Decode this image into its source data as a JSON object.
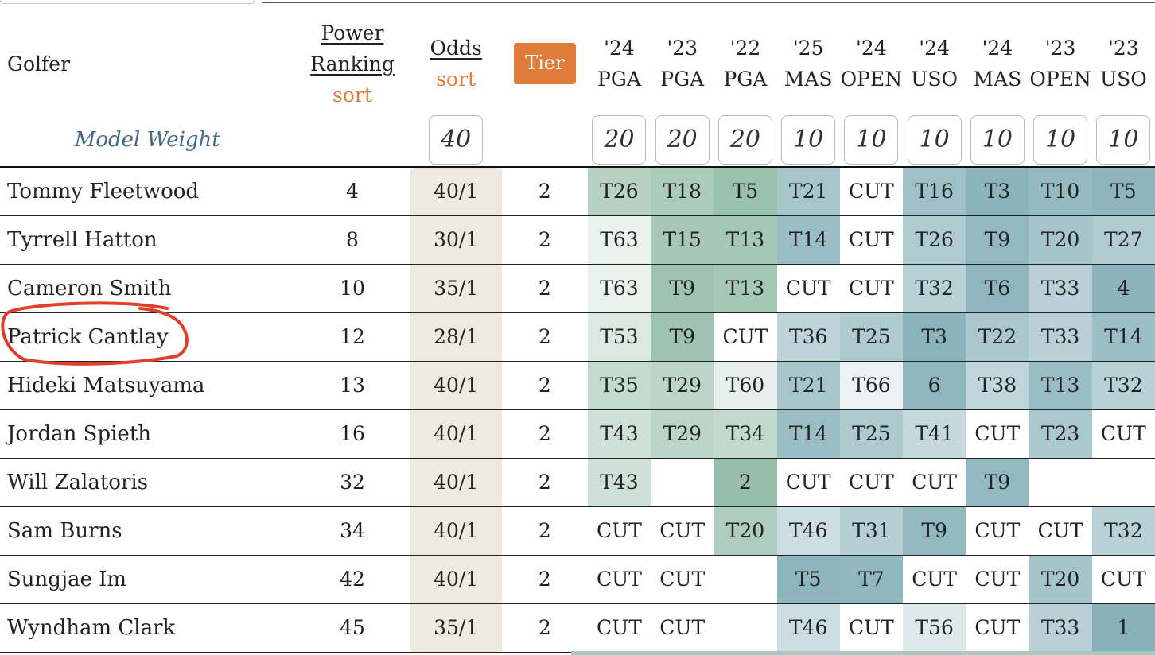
{
  "header": {
    "golfer": "Golfer",
    "power_ranking_line1": "Power",
    "power_ranking_line2": "Ranking",
    "power_ranking_sort": "sort",
    "odds": "Odds",
    "odds_sort": "sort",
    "tier": "Tier",
    "events": [
      {
        "year": "'24",
        "name": "PGA"
      },
      {
        "year": "'23",
        "name": "PGA"
      },
      {
        "year": "'22",
        "name": "PGA"
      },
      {
        "year": "'25",
        "name": "MAS"
      },
      {
        "year": "'24",
        "name": "OPEN"
      },
      {
        "year": "'24",
        "name": "USO"
      },
      {
        "year": "'24",
        "name": "MAS"
      },
      {
        "year": "'23",
        "name": "OPEN"
      },
      {
        "year": "'23",
        "name": "USO"
      }
    ]
  },
  "model_weight": {
    "label": "Model Weight",
    "odds": "40",
    "events": [
      "20",
      "20",
      "20",
      "10",
      "10",
      "10",
      "10",
      "10",
      "10"
    ]
  },
  "rows": [
    {
      "golfer": "Tommy Fleetwood",
      "rank": "4",
      "odds": "40/1",
      "tier": "2",
      "results": [
        "T26",
        "T18",
        "T5",
        "T21",
        "CUT",
        "T16",
        "T3",
        "T10",
        "T5"
      ]
    },
    {
      "golfer": "Tyrrell Hatton",
      "rank": "8",
      "odds": "30/1",
      "tier": "2",
      "results": [
        "T63",
        "T15",
        "T13",
        "T14",
        "CUT",
        "T26",
        "T9",
        "T20",
        "T27"
      ]
    },
    {
      "golfer": "Cameron Smith",
      "rank": "10",
      "odds": "35/1",
      "tier": "2",
      "results": [
        "T63",
        "T9",
        "T13",
        "CUT",
        "CUT",
        "T32",
        "T6",
        "T33",
        "4"
      ]
    },
    {
      "golfer": "Patrick Cantlay",
      "rank": "12",
      "odds": "28/1",
      "tier": "2",
      "results": [
        "T53",
        "T9",
        "CUT",
        "T36",
        "T25",
        "T3",
        "T22",
        "T33",
        "T14"
      ]
    },
    {
      "golfer": "Hideki Matsuyama",
      "rank": "13",
      "odds": "40/1",
      "tier": "2",
      "results": [
        "T35",
        "T29",
        "T60",
        "T21",
        "T66",
        "6",
        "T38",
        "T13",
        "T32"
      ]
    },
    {
      "golfer": "Jordan Spieth",
      "rank": "16",
      "odds": "40/1",
      "tier": "2",
      "results": [
        "T43",
        "T29",
        "T34",
        "T14",
        "T25",
        "T41",
        "CUT",
        "T23",
        "CUT"
      ]
    },
    {
      "golfer": "Will Zalatoris",
      "rank": "32",
      "odds": "40/1",
      "tier": "2",
      "results": [
        "T43",
        "",
        "2",
        "CUT",
        "CUT",
        "CUT",
        "T9",
        "",
        ""
      ]
    },
    {
      "golfer": "Sam Burns",
      "rank": "34",
      "odds": "40/1",
      "tier": "2",
      "results": [
        "CUT",
        "CUT",
        "T20",
        "T46",
        "T31",
        "T9",
        "CUT",
        "CUT",
        "T32"
      ]
    },
    {
      "golfer": "Sungjae Im",
      "rank": "42",
      "odds": "40/1",
      "tier": "2",
      "results": [
        "CUT",
        "CUT",
        "",
        "T5",
        "T7",
        "CUT",
        "CUT",
        "T20",
        "CUT"
      ]
    },
    {
      "golfer": "Wyndham Clark",
      "rank": "45",
      "odds": "35/1",
      "tier": "2",
      "results": [
        "CUT",
        "CUT",
        "",
        "T46",
        "CUT",
        "T56",
        "CUT",
        "T33",
        "1"
      ]
    }
  ],
  "colors": {
    "accent_orange": "#e07b3a",
    "model_weight_blue": "#3f6a8a",
    "odds_column_bg": "#eeeae1",
    "pga_heat_base": "#7aac94",
    "major_heat_base": "#6a9ea8",
    "annotation_red": "#e0402a"
  },
  "annotation": {
    "circled_golfer": "Patrick Cantlay"
  }
}
